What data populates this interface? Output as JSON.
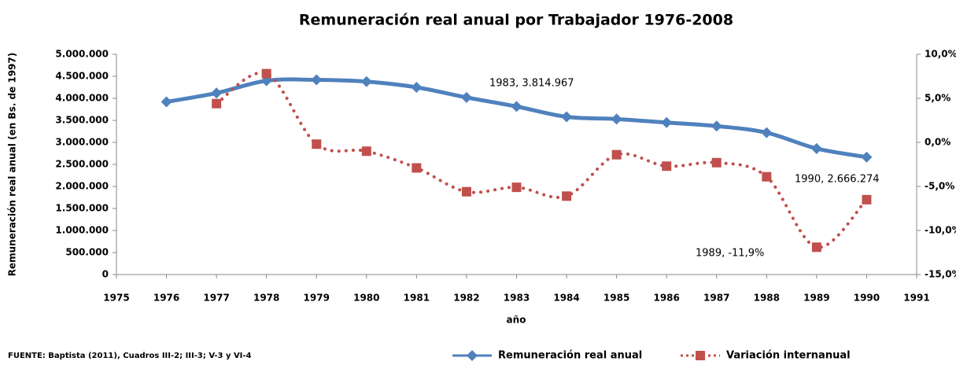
{
  "chart_data": {
    "type": "line",
    "title": "Remuneración real anual por Trabajador 1976-2008",
    "xlabel": "año",
    "ylabel": "Remuneración real anual (en Bs. de 1997)",
    "source": "FUENTE: Baptista (2011), Cuadros III-2; III-3; V-3 y VI-4",
    "x": [
      1976,
      1977,
      1978,
      1979,
      1980,
      1981,
      1982,
      1983,
      1984,
      1985,
      1986,
      1987,
      1988,
      1989,
      1990
    ],
    "xlim": [
      1975,
      1991
    ],
    "xticks": [
      1975,
      1976,
      1977,
      1978,
      1979,
      1980,
      1981,
      1982,
      1983,
      1984,
      1985,
      1986,
      1987,
      1988,
      1989,
      1990,
      1991
    ],
    "ylim": [
      0,
      5000000
    ],
    "yticks": [
      0,
      {
        "value": 500000,
        "label": "500.000"
      },
      {
        "value": 1000000,
        "label": "1.000.000"
      },
      {
        "value": 1500000,
        "label": "1.500.000"
      },
      {
        "value": 2000000,
        "label": "2.000.000"
      },
      {
        "value": 2500000,
        "label": "2.500.000"
      },
      {
        "value": 3000000,
        "label": "3.000.000"
      },
      {
        "value": 3500000,
        "label": "3.500.000"
      },
      {
        "value": 4000000,
        "label": "4.000.000"
      },
      {
        "value": 4500000,
        "label": "4.500.000"
      },
      {
        "value": 5000000,
        "label": "5.000.000"
      }
    ],
    "y2lim": [
      -15,
      10
    ],
    "y2ticks": [
      {
        "value": -15,
        "label": "-15,0%"
      },
      {
        "value": -10,
        "label": "-10,0%"
      },
      {
        "value": -5,
        "label": "-5,0%"
      },
      {
        "value": 0,
        "label": "0,0%"
      },
      {
        "value": 5,
        "label": "5,0%"
      },
      {
        "value": 10,
        "label": "10,0%"
      }
    ],
    "legend": "bottom-right",
    "series": [
      {
        "name": "Remuneración real anual",
        "color": "#4f81bd",
        "marker": "diamond",
        "line": "solid",
        "values": [
          3920000,
          4120000,
          4400000,
          4420000,
          4380000,
          4250000,
          4020000,
          3814967,
          3580000,
          3530000,
          3450000,
          3370000,
          3220000,
          2860000,
          2666274
        ]
      },
      {
        "name": "Variación internanual",
        "color": "#c0504d",
        "marker": "square",
        "line": "dotted",
        "axis": "y2",
        "values": [
          null,
          4.4,
          7.8,
          -0.2,
          -1.0,
          -2.9,
          -5.6,
          -5.1,
          -6.1,
          -1.4,
          -2.7,
          -2.3,
          -3.9,
          -11.9,
          -6.5
        ]
      }
    ],
    "annotations": [
      "1983, 3.814.967",
      "1990, 2.666.274",
      "1989, -11,9%"
    ]
  }
}
